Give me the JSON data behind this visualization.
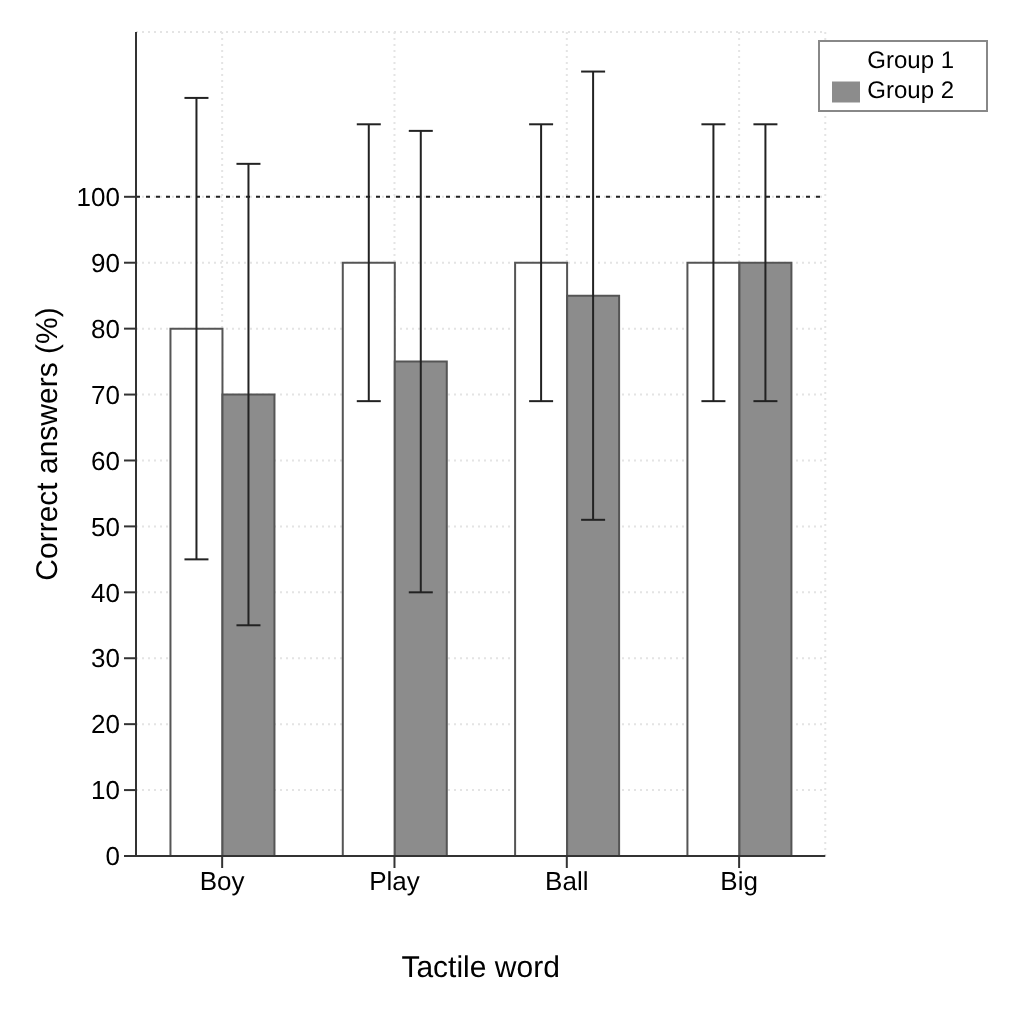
{
  "chart_data": {
    "type": "bar",
    "xlabel": "Tactile word",
    "ylabel": "Correct answers (%)",
    "categories": [
      "Boy",
      "Play",
      "Ball",
      "Big"
    ],
    "series": [
      {
        "name": "Group 1",
        "color": "#ffffff",
        "values": [
          80,
          90,
          90,
          90
        ],
        "errors": [
          35,
          21,
          21,
          21
        ]
      },
      {
        "name": "Group 2",
        "color": "#8c8c8c",
        "values": [
          70,
          75,
          85,
          90
        ],
        "errors": [
          35,
          35,
          34,
          21
        ]
      }
    ],
    "ylim": [
      0,
      125
    ],
    "yticks": [
      0,
      10,
      20,
      30,
      40,
      50,
      60,
      70,
      80,
      90,
      100
    ],
    "ref_lines": [
      {
        "axis": "y",
        "value": 100,
        "line_style": "dotted",
        "color": "#222222"
      }
    ],
    "grid": true,
    "legend": "top right"
  }
}
